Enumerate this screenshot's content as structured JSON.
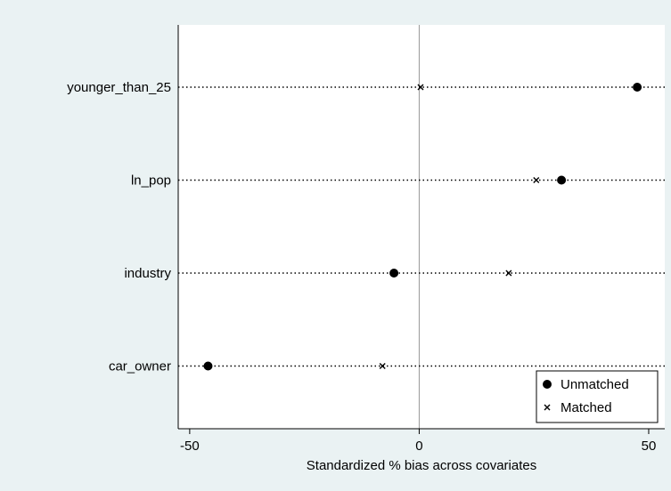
{
  "chart_data": {
    "type": "scatter",
    "title": "",
    "xlabel": "Standardized % bias across covariates",
    "ylabel": "",
    "xlim": [
      -52.5,
      53.5
    ],
    "xticks": [
      -50,
      0,
      50
    ],
    "xtick_labels": [
      "-50",
      "0",
      "50"
    ],
    "reference_line_x": 0,
    "grid": false,
    "categories": [
      "younger_than_25",
      "ln_pop",
      "industry",
      "car_owner"
    ],
    "series": [
      {
        "name": "Unmatched",
        "marker": "filled-circle",
        "values": [
          47.5,
          31.0,
          -5.5,
          -46.0
        ]
      },
      {
        "name": "Matched",
        "marker": "x",
        "values": [
          0.3,
          25.5,
          19.5,
          -8.0
        ]
      }
    ],
    "legend": {
      "position": "bottom-right",
      "entries": [
        "Unmatched",
        "Matched"
      ]
    },
    "colors": {
      "background": "#eaf2f3",
      "plot_background": "#ffffff",
      "marker": "#000000",
      "reference_line": "#999999"
    }
  }
}
